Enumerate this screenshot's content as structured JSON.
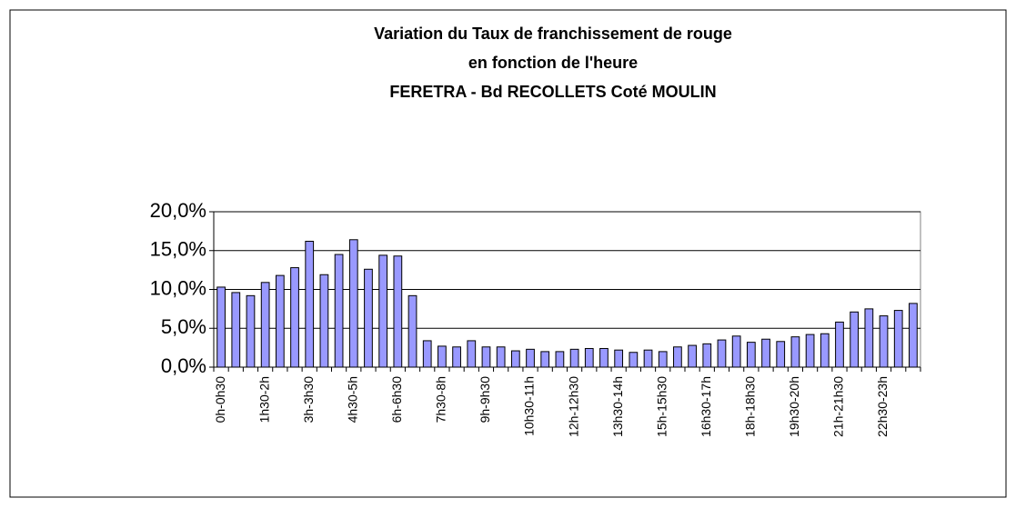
{
  "chart_data": {
    "type": "bar",
    "title": [
      "Variation du Taux de franchissement de rouge",
      "en fonction de l'heure",
      "FERETRA - Bd RECOLLETS Coté MOULIN"
    ],
    "categories": [
      "0h-0h30",
      null,
      null,
      "1h30-2h",
      null,
      null,
      "3h-3h30",
      null,
      null,
      "4h30-5h",
      null,
      null,
      "6h-6h30",
      null,
      null,
      "7h30-8h",
      null,
      null,
      "9h-9h30",
      null,
      null,
      "10h30-11h",
      null,
      null,
      "12h-12h30",
      null,
      null,
      "13h30-14h",
      null,
      null,
      "15h-15h30",
      null,
      null,
      "16h30-17h",
      null,
      null,
      "18h-18h30",
      null,
      null,
      "19h30-20h",
      null,
      null,
      "21h-21h30",
      null,
      null,
      "22h30-23h",
      null,
      null
    ],
    "values": [
      10.3,
      9.6,
      9.2,
      10.9,
      11.8,
      12.8,
      16.2,
      11.9,
      14.5,
      16.4,
      12.6,
      14.4,
      14.3,
      9.2,
      3.4,
      2.7,
      2.6,
      3.4,
      2.6,
      2.6,
      2.1,
      2.3,
      2.0,
      2.0,
      2.3,
      2.4,
      2.4,
      2.2,
      1.9,
      2.2,
      2.0,
      2.6,
      2.8,
      3.0,
      3.5,
      4.0,
      3.2,
      3.6,
      3.3,
      3.9,
      4.2,
      4.3,
      5.8,
      7.1,
      7.5,
      6.6,
      7.3,
      8.2
    ],
    "color": "#9999ff",
    "ylim": [
      0,
      20
    ],
    "yticks": [
      {
        "value": 0,
        "label": "0,0%"
      },
      {
        "value": 5,
        "label": "5,0%"
      },
      {
        "value": 10,
        "label": "10,0%"
      },
      {
        "value": 15,
        "label": "15,0%"
      },
      {
        "value": 20,
        "label": "20,0%"
      }
    ],
    "grid": true
  }
}
